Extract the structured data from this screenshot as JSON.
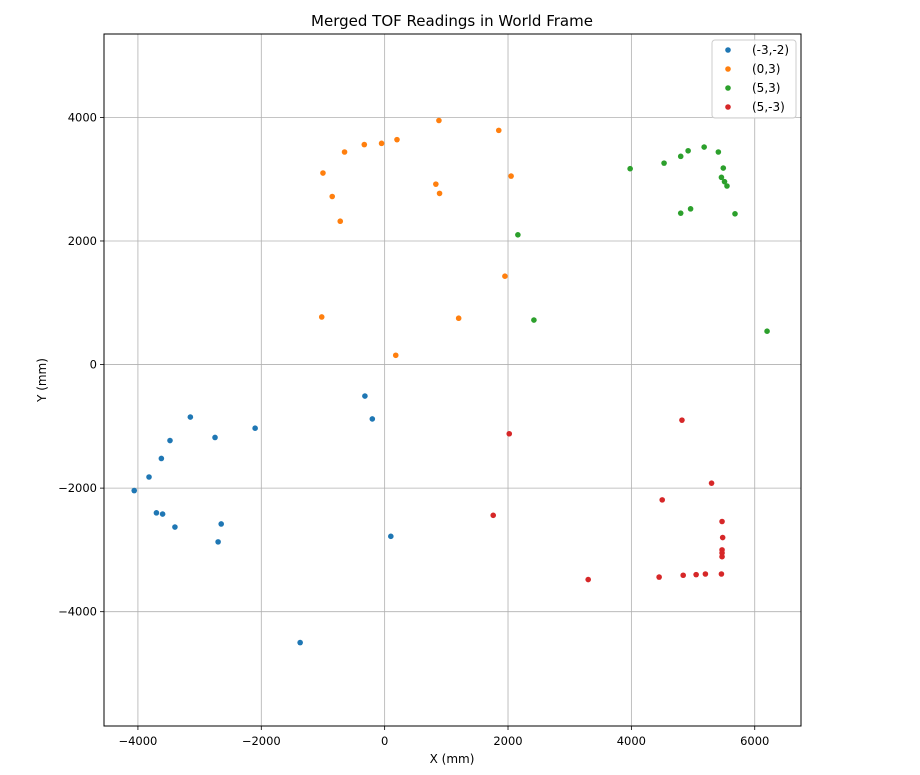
{
  "chart_data": {
    "type": "scatter",
    "title": "Merged TOF Readings in World Frame",
    "xlabel": "X (mm)",
    "ylabel": "Y (mm)",
    "xlim": [
      -4550,
      6750
    ],
    "ylim": [
      -5850,
      5350
    ],
    "xticks": [
      -4000,
      -2000,
      0,
      2000,
      4000,
      6000
    ],
    "yticks": [
      -4000,
      -2000,
      0,
      2000,
      4000
    ],
    "xtick_labels": [
      "−4000",
      "−2000",
      "0",
      "2000",
      "4000",
      "6000"
    ],
    "ytick_labels": [
      "−4000",
      "−2000",
      "0",
      "2000",
      "4000"
    ],
    "grid": true,
    "legend_position": "top-right",
    "series": [
      {
        "name": "(-3,-2)",
        "color": "#1f77b4",
        "points": [
          [
            -3150,
            -850
          ],
          [
            -3480,
            -1230
          ],
          [
            -3620,
            -1520
          ],
          [
            -3820,
            -1820
          ],
          [
            -4060,
            -2040
          ],
          [
            -3700,
            -2400
          ],
          [
            -3600,
            -2420
          ],
          [
            -3400,
            -2630
          ],
          [
            -2750,
            -1180
          ],
          [
            -2100,
            -1030
          ],
          [
            -2650,
            -2580
          ],
          [
            -2700,
            -2870
          ],
          [
            -1370,
            -4500
          ],
          [
            -320,
            -510
          ],
          [
            -200,
            -880
          ],
          [
            100,
            -2780
          ]
        ]
      },
      {
        "name": "(0,3)",
        "color": "#ff7f0e",
        "points": [
          [
            -1000,
            3100
          ],
          [
            -850,
            2720
          ],
          [
            -720,
            2320
          ],
          [
            -650,
            3440
          ],
          [
            -330,
            3560
          ],
          [
            -50,
            3580
          ],
          [
            200,
            3640
          ],
          [
            880,
            3950
          ],
          [
            1850,
            3790
          ],
          [
            830,
            2920
          ],
          [
            890,
            2770
          ],
          [
            2050,
            3050
          ],
          [
            1950,
            1430
          ],
          [
            -1020,
            770
          ],
          [
            1200,
            750
          ],
          [
            180,
            150
          ]
        ]
      },
      {
        "name": "(5,3)",
        "color": "#2ca02c",
        "points": [
          [
            3980,
            3170
          ],
          [
            4530,
            3260
          ],
          [
            4800,
            3370
          ],
          [
            4920,
            3460
          ],
          [
            5180,
            3520
          ],
          [
            5410,
            3440
          ],
          [
            5490,
            3180
          ],
          [
            5460,
            3030
          ],
          [
            5510,
            2960
          ],
          [
            5550,
            2890
          ],
          [
            4800,
            2450
          ],
          [
            4960,
            2520
          ],
          [
            5680,
            2440
          ],
          [
            2160,
            2100
          ],
          [
            2420,
            720
          ],
          [
            6200,
            540
          ]
        ]
      },
      {
        "name": "(5,-3)",
        "color": "#d62728",
        "points": [
          [
            4820,
            -900
          ],
          [
            2020,
            -1120
          ],
          [
            5300,
            -1920
          ],
          [
            4500,
            -2190
          ],
          [
            1760,
            -2440
          ],
          [
            5470,
            -2540
          ],
          [
            5480,
            -2800
          ],
          [
            5470,
            -3000
          ],
          [
            5470,
            -3050
          ],
          [
            5470,
            -3110
          ],
          [
            5460,
            -3390
          ],
          [
            5200,
            -3390
          ],
          [
            5050,
            -3400
          ],
          [
            4840,
            -3410
          ],
          [
            4450,
            -3440
          ],
          [
            3300,
            -3480
          ]
        ]
      }
    ]
  }
}
